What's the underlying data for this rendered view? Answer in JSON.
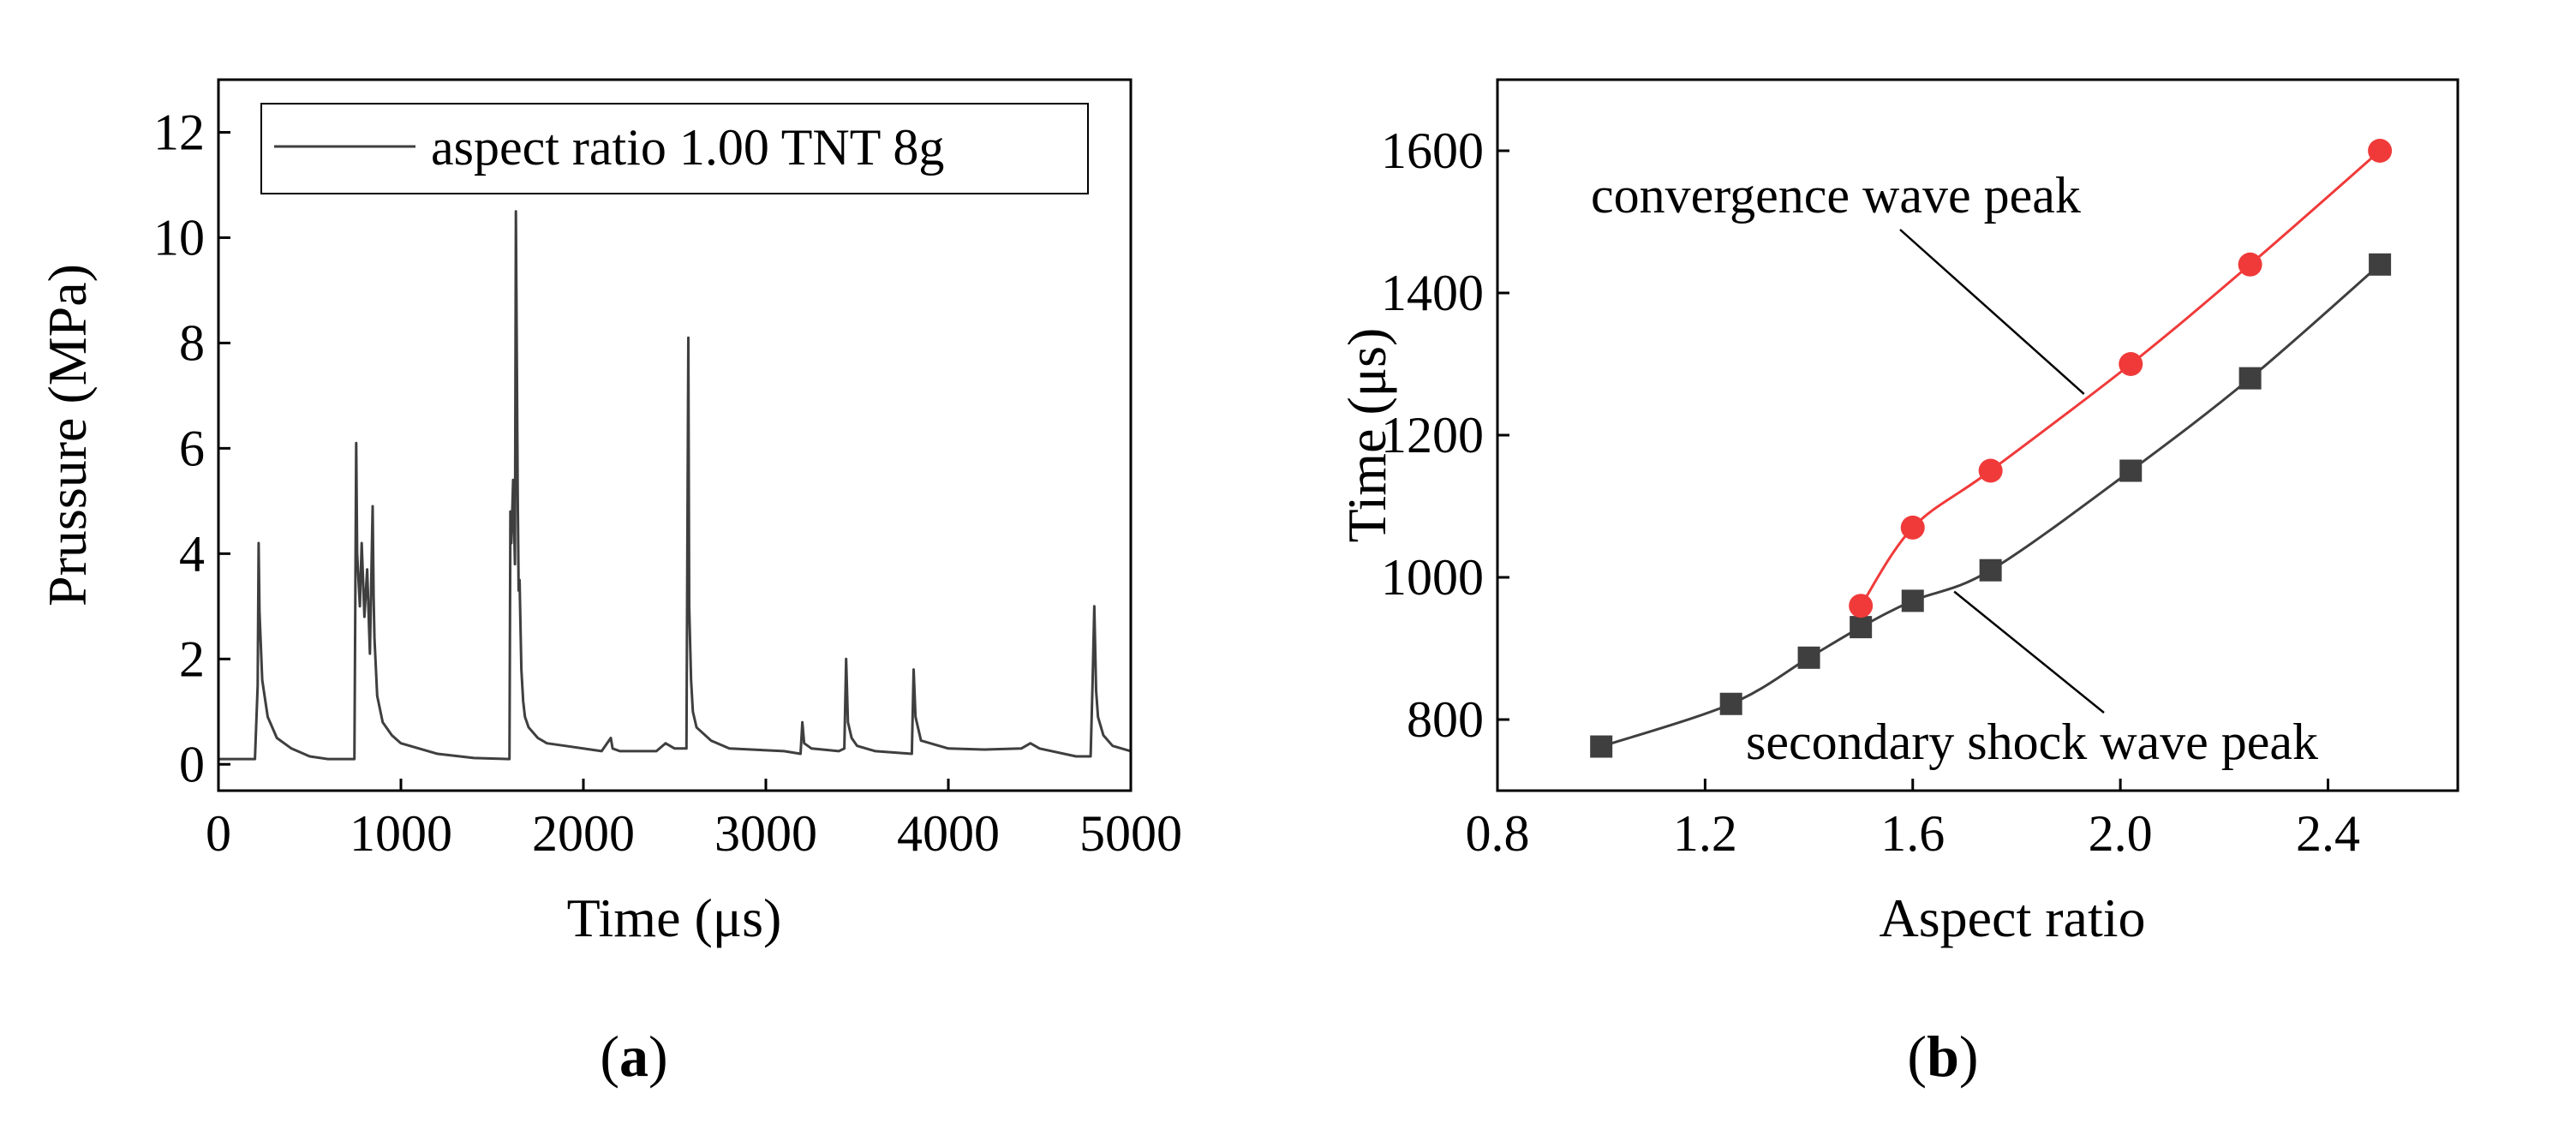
{
  "colors": {
    "dark_series": "#3f3f3f",
    "red_series": "#f03a3a",
    "axis": "#000000",
    "background": "#ffffff"
  },
  "captions": {
    "a": {
      "open": "(",
      "letter": "a",
      "close": ")"
    },
    "b": {
      "open": "(",
      "letter": "b",
      "close": ")"
    }
  },
  "chart_data": [
    {
      "id": "a",
      "type": "line",
      "title": "",
      "xlabel": "Time (μs)",
      "ylabel": "Prussure (MPa)",
      "xlim": [
        0,
        5000
      ],
      "ylim": [
        -0.5,
        13
      ],
      "xticks": [
        0,
        1000,
        2000,
        3000,
        4000,
        5000
      ],
      "yticks": [
        0,
        2,
        4,
        6,
        8,
        10,
        12
      ],
      "grid": false,
      "legend": {
        "position": "top-left",
        "entries": [
          "aspect ratio 1.00 TNT 8g"
        ]
      },
      "series": [
        {
          "name": "aspect ratio 1.00 TNT 8g",
          "color": "#3f3f3f",
          "x": [
            0,
            200,
            215,
            220,
            225,
            240,
            270,
            320,
            400,
            500,
            600,
            700,
            745,
            750,
            755,
            760,
            775,
            785,
            800,
            815,
            830,
            845,
            850,
            855,
            870,
            900,
            950,
            1000,
            1200,
            1400,
            1595,
            1600,
            1605,
            1615,
            1625,
            1630,
            1640,
            1645,
            1650,
            1660,
            1670,
            1680,
            1700,
            1750,
            1800,
            1900,
            2100,
            2150,
            2160,
            2200,
            2400,
            2450,
            2500,
            2565,
            2575,
            2580,
            2590,
            2600,
            2620,
            2700,
            2800,
            3100,
            3190,
            3200,
            3210,
            3250,
            3400,
            3430,
            3440,
            3450,
            3470,
            3500,
            3600,
            3800,
            3810,
            3820,
            3850,
            4000,
            4200,
            4400,
            4450,
            4500,
            4700,
            4780,
            4790,
            4800,
            4810,
            4820,
            4850,
            4900,
            5000
          ],
          "values": [
            0.1,
            0.1,
            1.5,
            4.2,
            2.9,
            1.6,
            0.9,
            0.5,
            0.3,
            0.15,
            0.1,
            0.1,
            0.1,
            3.2,
            6.1,
            4.0,
            3.0,
            4.2,
            2.8,
            3.7,
            2.1,
            4.9,
            3.2,
            2.4,
            1.3,
            0.8,
            0.55,
            0.4,
            0.2,
            0.12,
            0.1,
            4.8,
            4.2,
            5.4,
            3.8,
            10.5,
            5.2,
            3.3,
            3.5,
            1.8,
            1.2,
            0.9,
            0.7,
            0.5,
            0.4,
            0.35,
            0.25,
            0.5,
            0.3,
            0.25,
            0.25,
            0.4,
            0.3,
            0.3,
            8.1,
            3.0,
            1.6,
            1.0,
            0.7,
            0.45,
            0.3,
            0.25,
            0.2,
            0.8,
            0.4,
            0.3,
            0.25,
            0.3,
            2.0,
            0.8,
            0.5,
            0.35,
            0.25,
            0.2,
            1.8,
            0.9,
            0.45,
            0.3,
            0.28,
            0.3,
            0.4,
            0.3,
            0.15,
            0.15,
            1.5,
            3.0,
            1.4,
            0.9,
            0.55,
            0.35,
            0.25
          ]
        }
      ]
    },
    {
      "id": "b",
      "type": "line",
      "title": "",
      "xlabel": "Aspect ratio",
      "ylabel": "Time (μs)",
      "xlim": [
        0.8,
        2.65
      ],
      "ylim": [
        700,
        1700
      ],
      "xticks": [
        0.8,
        1.2,
        1.6,
        2.0,
        2.4
      ],
      "xtick_labels": [
        "0.8",
        "1.2",
        "1.6",
        "2.0",
        "2.4"
      ],
      "yticks": [
        800,
        1000,
        1200,
        1400,
        1600
      ],
      "grid": false,
      "series": [
        {
          "name": "convergence wave peak",
          "marker": "circle",
          "color": "#f03a3a",
          "x": [
            1.5,
            1.6,
            1.75,
            2.02,
            2.25,
            2.5
          ],
          "values": [
            960,
            1070,
            1150,
            1300,
            1440,
            1600
          ]
        },
        {
          "name": "secondary shock wave peak",
          "marker": "square",
          "color": "#3f3f3f",
          "x": [
            1.0,
            1.25,
            1.4,
            1.5,
            1.6,
            1.75,
            2.02,
            2.25,
            2.5
          ],
          "values": [
            762,
            822,
            887,
            930,
            967,
            1010,
            1150,
            1280,
            1440
          ]
        }
      ],
      "annotations": [
        {
          "text": "convergence wave peak",
          "points_to": [
            1.93,
            1258
          ]
        },
        {
          "text": "secondary shock wave peak",
          "points_to": [
            1.68,
            980
          ]
        }
      ]
    }
  ]
}
